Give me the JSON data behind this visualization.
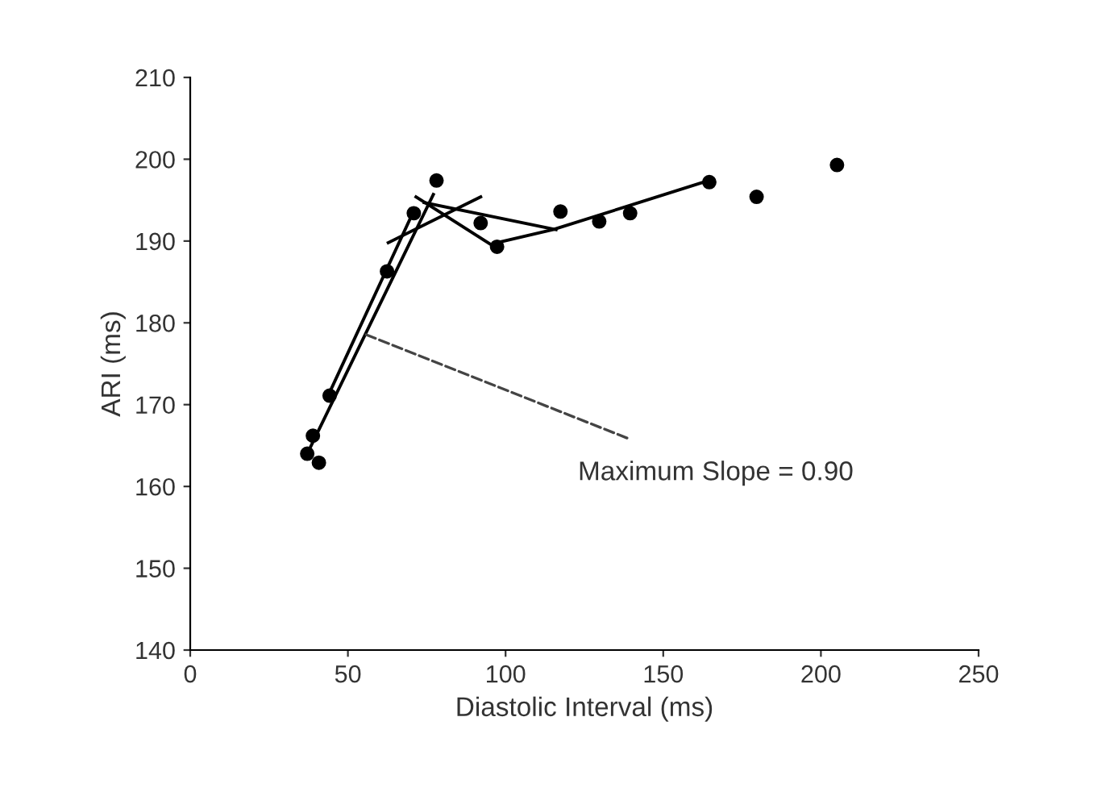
{
  "chart_data": {
    "type": "scatter",
    "xlabel": "Diastolic Interval (ms)",
    "ylabel": "ARI (ms)",
    "xlim": [
      0,
      250
    ],
    "xticks": [
      0,
      50,
      100,
      150,
      200,
      250
    ],
    "ylim": [
      140,
      210
    ],
    "yticks": [
      140,
      150,
      160,
      170,
      180,
      190,
      200,
      210
    ],
    "grid": false,
    "legend": false,
    "marker": "circle",
    "series": [
      {
        "color": "#000000",
        "x": [
          37.1,
          38.9,
          40.8,
          44.2,
          62.4,
          70.9,
          78.1,
          92.1,
          97.3,
          117.4,
          129.7,
          139.5,
          164.6,
          179.6,
          205.1
        ],
        "values": [
          164.0,
          166.2,
          162.9,
          171.1,
          186.3,
          193.4,
          197.4,
          192.2,
          189.3,
          193.6,
          192.4,
          193.4,
          197.2,
          195.4,
          199.3
        ]
      },
      {
        "type": "line",
        "color": "#000000",
        "marker": "none",
        "x": [
          37.1,
          77.1
        ],
        "values": [
          164.0,
          195.7
        ]
      },
      {
        "type": "line",
        "color": "#000000",
        "marker": "none",
        "x": [
          43.6,
          70.9
        ],
        "values": [
          171.0,
          193.7
        ]
      },
      {
        "type": "line",
        "color": "#000000",
        "marker": "none",
        "x": [
          62.8,
          92.1
        ],
        "values": [
          189.8,
          195.4
        ]
      },
      {
        "type": "line",
        "color": "#000000",
        "marker": "none",
        "x": [
          71.6,
          97.3
        ],
        "values": [
          195.4,
          189.1
        ]
      },
      {
        "type": "line",
        "color": "#000000",
        "marker": "none",
        "x": [
          74.2,
          116.0
        ],
        "values": [
          194.7,
          191.4
        ]
      },
      {
        "type": "line",
        "color": "#000000",
        "marker": "none",
        "x": [
          97.3,
          115.1,
          164.5
        ],
        "values": [
          189.8,
          191.4,
          197.4
        ]
      }
    ],
    "annotations": [
      {
        "text": "Maximum Slope = 0.90",
        "x": 55.5,
        "y": 178.6
      }
    ]
  }
}
